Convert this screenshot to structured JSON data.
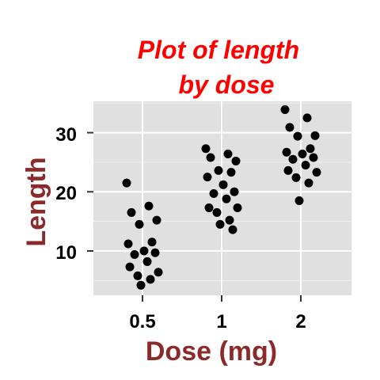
{
  "chart_data": {
    "type": "scatter",
    "title_lines": [
      "Plot of length",
      "by dose"
    ],
    "xlabel": "Dose (mg)",
    "ylabel": "Length",
    "x_categories": [
      "0.5",
      "1",
      "2"
    ],
    "y_ticks": [
      10,
      20,
      30
    ],
    "ylim": [
      2.5,
      35.3
    ],
    "jitter": true,
    "grid": true,
    "legend": "none",
    "colors": {
      "title": "#ff0000",
      "axis_title": "#8b2a2a",
      "panel": "#e0e0e0",
      "grid": "#ffffff",
      "points": "#000000"
    },
    "points": [
      {
        "x": "0.5",
        "y": 21.5
      },
      {
        "x": "0.5",
        "y": 17.6
      },
      {
        "x": "0.5",
        "y": 16.5
      },
      {
        "x": "0.5",
        "y": 15.2
      },
      {
        "x": "0.5",
        "y": 14.5
      },
      {
        "x": "0.5",
        "y": 11.5
      },
      {
        "x": "0.5",
        "y": 11.2
      },
      {
        "x": "0.5",
        "y": 10.0
      },
      {
        "x": "0.5",
        "y": 9.7
      },
      {
        "x": "0.5",
        "y": 9.4
      },
      {
        "x": "0.5",
        "y": 8.2
      },
      {
        "x": "0.5",
        "y": 7.3
      },
      {
        "x": "0.5",
        "y": 6.4
      },
      {
        "x": "0.5",
        "y": 5.8
      },
      {
        "x": "0.5",
        "y": 5.2
      },
      {
        "x": "0.5",
        "y": 4.2
      },
      {
        "x": "1",
        "y": 27.3
      },
      {
        "x": "1",
        "y": 26.4
      },
      {
        "x": "1",
        "y": 25.8
      },
      {
        "x": "1",
        "y": 25.2
      },
      {
        "x": "1",
        "y": 23.6
      },
      {
        "x": "1",
        "y": 23.3
      },
      {
        "x": "1",
        "y": 22.5
      },
      {
        "x": "1",
        "y": 21.2
      },
      {
        "x": "1",
        "y": 20.0
      },
      {
        "x": "1",
        "y": 19.7
      },
      {
        "x": "1",
        "y": 18.8
      },
      {
        "x": "1",
        "y": 17.3
      },
      {
        "x": "1",
        "y": 17.3
      },
      {
        "x": "1",
        "y": 16.5
      },
      {
        "x": "1",
        "y": 15.2
      },
      {
        "x": "1",
        "y": 14.5
      },
      {
        "x": "1",
        "y": 13.6
      },
      {
        "x": "2",
        "y": 33.9
      },
      {
        "x": "2",
        "y": 32.5
      },
      {
        "x": "2",
        "y": 30.9
      },
      {
        "x": "2",
        "y": 29.5
      },
      {
        "x": "2",
        "y": 29.4
      },
      {
        "x": "2",
        "y": 27.3
      },
      {
        "x": "2",
        "y": 26.7
      },
      {
        "x": "2",
        "y": 26.4
      },
      {
        "x": "2",
        "y": 25.8
      },
      {
        "x": "2",
        "y": 25.5
      },
      {
        "x": "2",
        "y": 24.5
      },
      {
        "x": "2",
        "y": 23.6
      },
      {
        "x": "2",
        "y": 23.3
      },
      {
        "x": "2",
        "y": 22.4
      },
      {
        "x": "2",
        "y": 21.5
      },
      {
        "x": "2",
        "y": 18.5
      }
    ]
  }
}
